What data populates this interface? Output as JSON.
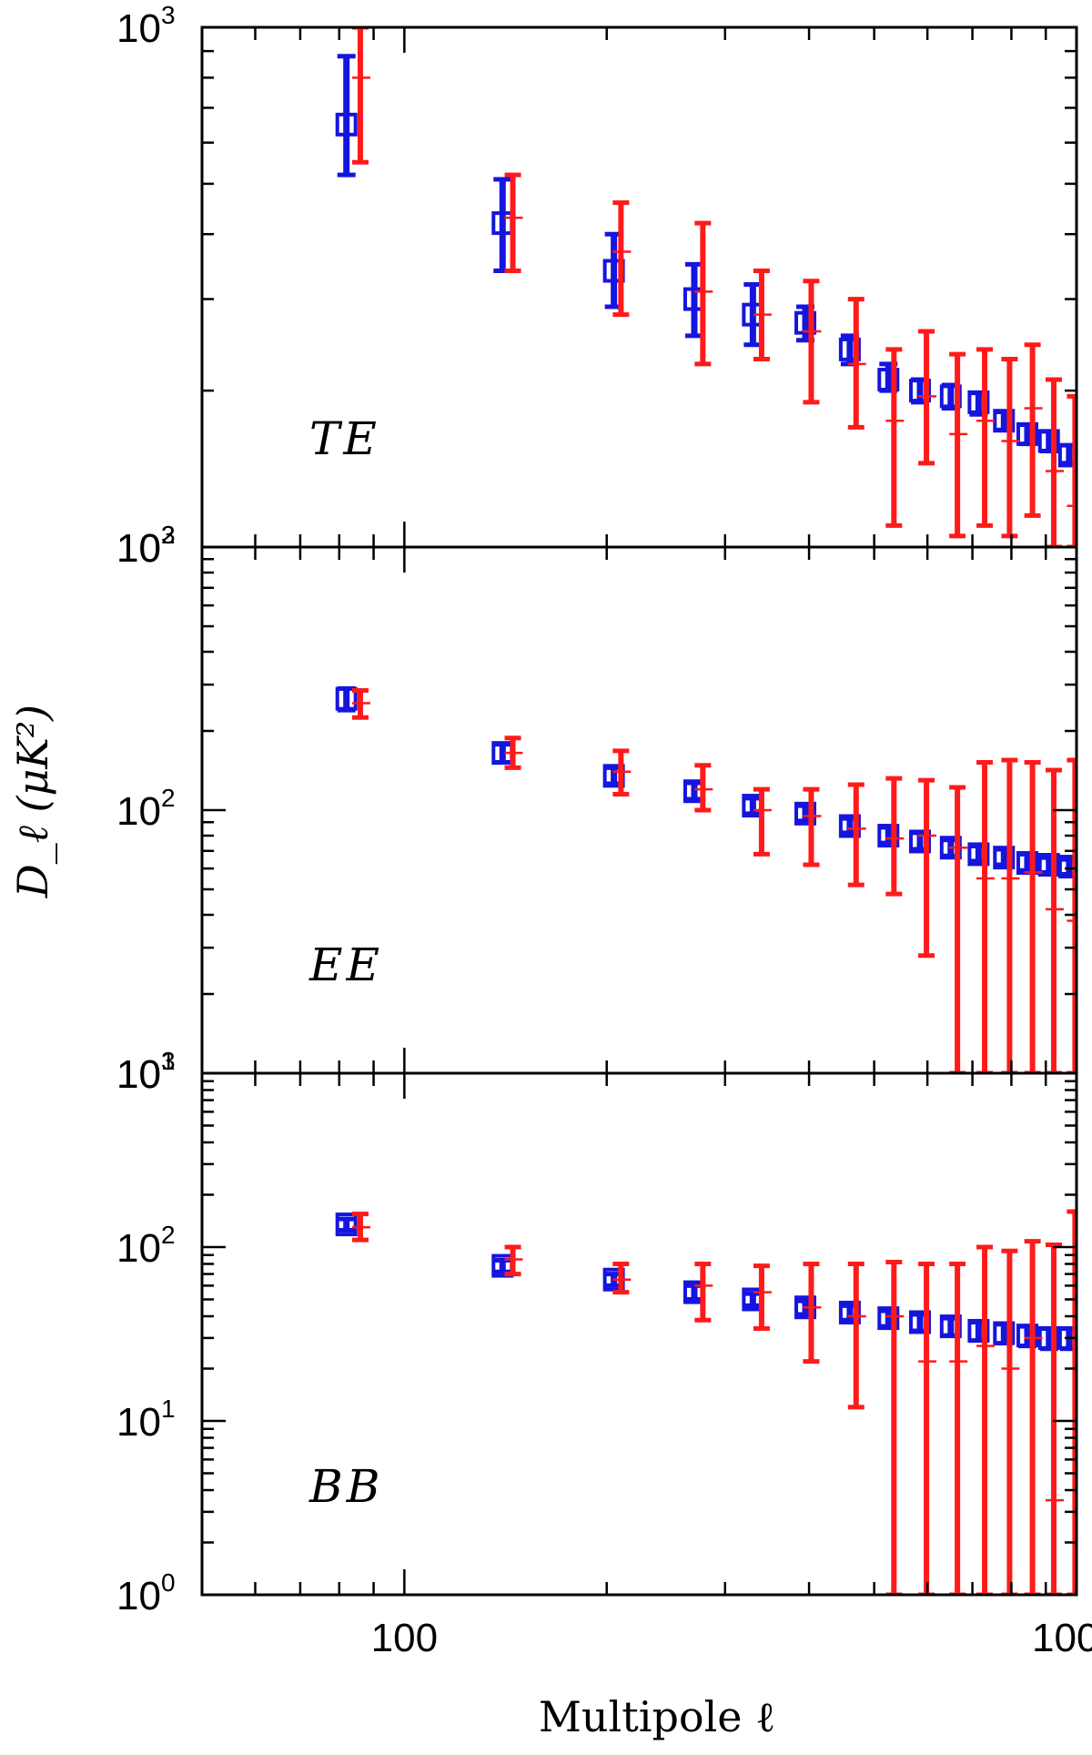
{
  "chart_data": {
    "type": "scatter",
    "xlabel": "Multipole ℓ",
    "ylabel": "D_ℓ (μK²)",
    "xscale": "log",
    "yscale": "log",
    "xlim": [
      50,
      1000
    ],
    "xticks": [
      {
        "value": 100,
        "label": "100"
      },
      {
        "value": 1000,
        "label": "1000"
      }
    ],
    "colors": {
      "blue": "#1515e0",
      "red": "#ff1a1a"
    },
    "panels": [
      {
        "label": "TE",
        "ylim": [
          100,
          1000
        ],
        "yticks": [
          {
            "value": 1000,
            "base": "10",
            "exp": "3"
          },
          {
            "value": 100,
            "base": "10",
            "exp": "2"
          }
        ],
        "series": [
          {
            "color": "blue",
            "marker": "square",
            "x": [
              82,
              140,
              205,
              270,
              330,
              395,
              460,
              525,
              585,
              650,
              715,
              780,
              845,
              910,
              975
            ],
            "y": [
              650,
              420,
              340,
              300,
              280,
              270,
              240,
              210,
              200,
              195,
              190,
              175,
              165,
              160,
              150
            ],
            "ylo": [
              520,
              340,
              290,
              255,
              245,
              250,
              225,
              200,
              190,
              185,
              180,
              168,
              158,
              153,
              145
            ],
            "yhi": [
              880,
              510,
              400,
              350,
              320,
              290,
              255,
              225,
              210,
              205,
              198,
              182,
              172,
              167,
              157
            ]
          },
          {
            "color": "red",
            "marker": "dash",
            "x": [
              86,
              145,
              210,
              278,
              340,
              403,
              470,
              535,
              598,
              665,
              730,
              795,
              860,
              925,
              995
            ],
            "y": [
              800,
              430,
              370,
              310,
              280,
              260,
              225,
              175,
              195,
              165,
              175,
              160,
              185,
              140,
              120
            ],
            "ylo": [
              550,
              340,
              280,
              225,
              230,
              190,
              170,
              110,
              145,
              105,
              110,
              105,
              115,
              100,
              100
            ],
            "yhi": [
              1000,
              520,
              460,
              420,
              340,
              325,
              300,
              240,
              260,
              235,
              240,
              230,
              245,
              210,
              195
            ]
          }
        ]
      },
      {
        "label": "EE",
        "ylim": [
          10,
          1000
        ],
        "yticks": [
          {
            "value": 1000,
            "base": "10",
            "exp": "3"
          },
          {
            "value": 100,
            "base": "10",
            "exp": "2"
          },
          {
            "value": 10,
            "base": "10",
            "exp": "1"
          }
        ],
        "series": [
          {
            "color": "blue",
            "marker": "square",
            "x": [
              82,
              140,
              205,
              270,
              330,
              395,
              460,
              525,
              585,
              650,
              715,
              780,
              845,
              910,
              975
            ],
            "y": [
              265,
              165,
              135,
              118,
              104,
              97,
              87,
              80,
              76,
              72,
              68,
              66,
              63,
              62,
              61
            ],
            "ylo": [
              240,
              152,
              126,
              110,
              97,
              91,
              82,
              75,
              71,
              67,
              64,
              62,
              59,
              58,
              57
            ],
            "yhi": [
              290,
              178,
              145,
              127,
              111,
              104,
              93,
              86,
              82,
              77,
              73,
              71,
              68,
              66,
              65
            ]
          },
          {
            "color": "red",
            "marker": "dash",
            "x": [
              86,
              145,
              210,
              278,
              340,
              403,
              470,
              535,
              598,
              665,
              730,
              795,
              860,
              925,
              995
            ],
            "y": [
              255,
              165,
              140,
              120,
              100,
              95,
              85,
              78,
              80,
              72,
              55,
              55,
              58,
              42,
              38
            ],
            "ylo": [
              225,
              145,
              115,
              100,
              68,
              62,
              52,
              48,
              28,
              10,
              10,
              10,
              10,
              10,
              10
            ],
            "yhi": [
              285,
              188,
              168,
              148,
              120,
              120,
              125,
              132,
              130,
              122,
              152,
              155,
              152,
              142,
              155
            ]
          }
        ]
      },
      {
        "label": "BB",
        "ylim": [
          1,
          1000
        ],
        "yticks": [
          {
            "value": 1000,
            "base": "10",
            "exp": "3"
          },
          {
            "value": 100,
            "base": "10",
            "exp": "2"
          },
          {
            "value": 10,
            "base": "10",
            "exp": "1"
          },
          {
            "value": 1,
            "base": "10",
            "exp": "0"
          }
        ],
        "series": [
          {
            "color": "blue",
            "marker": "square",
            "x": [
              82,
              140,
              205,
              270,
              330,
              395,
              460,
              525,
              585,
              650,
              715,
              780,
              845,
              910,
              975
            ],
            "y": [
              135,
              78,
              65,
              55,
              50,
              45,
              42,
              39,
              37,
              35,
              33,
              32,
              31,
              30,
              30
            ],
            "ylo": [
              125,
              72,
              60,
              50,
              46,
              41,
              38,
              35,
              33,
              31,
              29,
              28,
              27,
              26,
              26
            ],
            "yhi": [
              145,
              84,
              70,
              60,
              54,
              49,
              46,
              43,
              41,
              39,
              37,
              36,
              35,
              34,
              34
            ]
          },
          {
            "color": "red",
            "marker": "dash",
            "x": [
              86,
              145,
              210,
              278,
              340,
              403,
              470,
              535,
              598,
              665,
              730,
              795,
              860,
              925,
              995
            ],
            "y": [
              130,
              85,
              65,
              60,
              55,
              45,
              40,
              40,
              22,
              22,
              27,
              20,
              30,
              3.5,
              50
            ],
            "ylo": [
              110,
              70,
              55,
              38,
              34,
              22,
              12,
              1,
              1,
              1,
              1,
              1,
              1,
              1,
              1
            ],
            "yhi": [
              155,
              100,
              80,
              80,
              78,
              80,
              80,
              82,
              80,
              80,
              100,
              95,
              108,
              103,
              160
            ]
          }
        ]
      }
    ]
  }
}
